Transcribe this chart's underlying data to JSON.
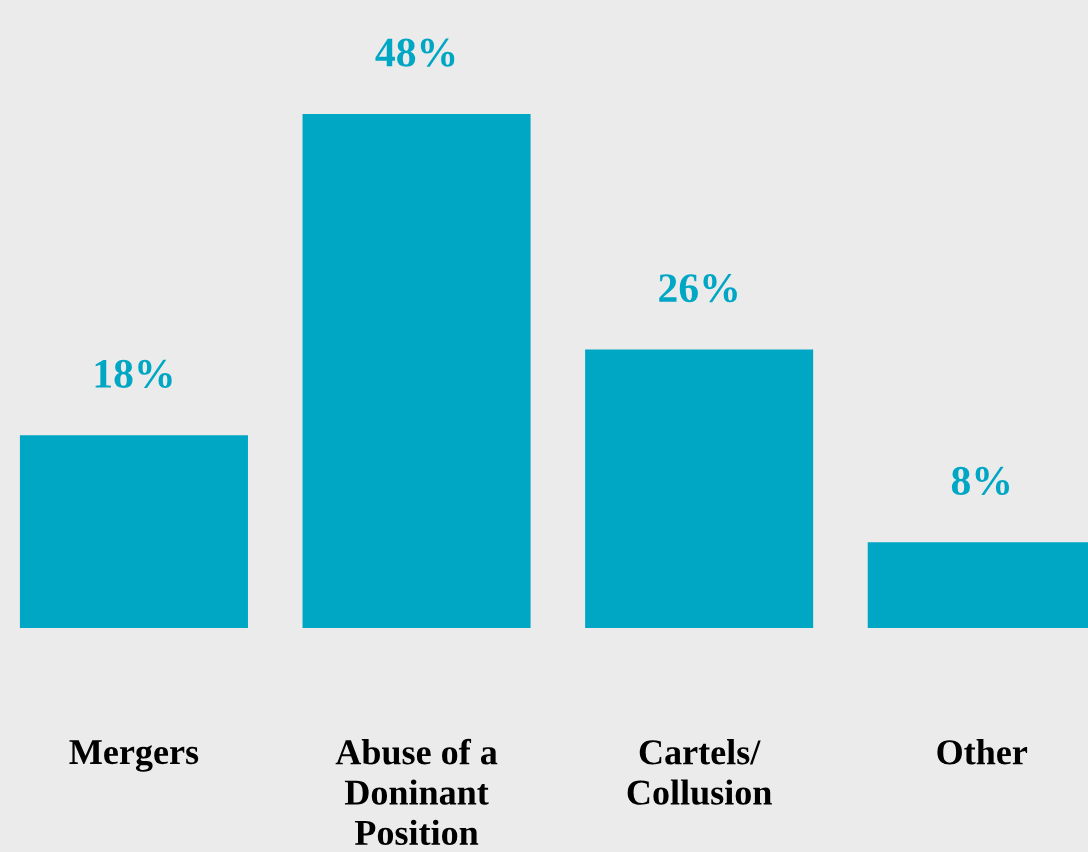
{
  "chart_data": {
    "type": "bar",
    "categories": [
      "Mergers",
      "Abuse of a\nDoninant\nPosition",
      "Cartels/\nCollusion",
      "Other"
    ],
    "values": [
      18,
      48,
      26,
      8
    ],
    "value_labels": [
      "18%",
      "48%",
      "26%",
      "8%"
    ],
    "color": "#00a7c4",
    "grid": false,
    "legend": false
  }
}
